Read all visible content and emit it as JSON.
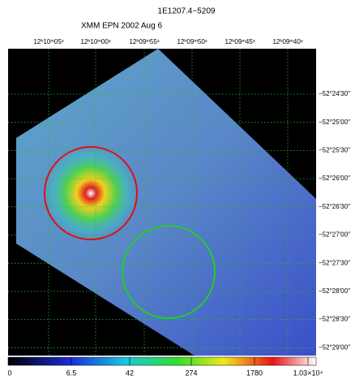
{
  "header": {
    "title": "1E1207.4−5209",
    "subtitle": "XMM EPN   2002 Aug  6"
  },
  "ra_labels": [
    "12ʰ10ᵐ05ˢ",
    "12ʰ10ᵐ00ˢ",
    "12ʰ09ᵐ55ˢ",
    "12ʰ09ᵐ50ˢ",
    "12ʰ09ᵐ45ˢ",
    "12ʰ09ᵐ40ˢ"
  ],
  "dec_labels": [
    "−52°24′30″",
    "−52°25′00″",
    "−52°25′30″",
    "−52°26′00″",
    "−52°26′30″",
    "−52°27′00″",
    "−52°27′30″",
    "−52°28′00″",
    "−52°28′30″",
    "−52°29′00″"
  ],
  "colorbar_labels": [
    "0",
    "6.5",
    "42",
    "274",
    "1780",
    "1.03×10⁴"
  ]
}
